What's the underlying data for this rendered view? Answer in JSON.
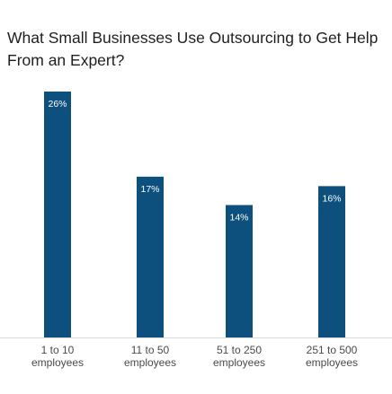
{
  "chart_data": {
    "type": "bar",
    "title": "What Small Businesses Use Outsourcing to Get Help From an Expert?",
    "categories": [
      [
        "1 to 10",
        "employees"
      ],
      [
        "11 to 50",
        "employees"
      ],
      [
        "51 to 250",
        "employees"
      ],
      [
        "251 to 500",
        "employees"
      ]
    ],
    "values": [
      26,
      17,
      14,
      16
    ],
    "value_labels": [
      "26%",
      "17%",
      "14%",
      "16%"
    ],
    "unit": "%",
    "ylim": [
      0,
      26
    ],
    "grid": false,
    "legend": "none",
    "bar_color": "#0d4f7d",
    "baseline_color": "#d9d9d9"
  }
}
